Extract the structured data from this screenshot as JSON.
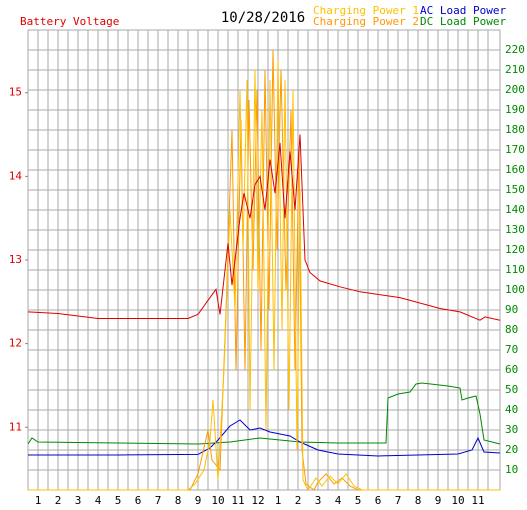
{
  "chart_data": {
    "type": "line",
    "title": "10/28/2016",
    "xlim": [
      0.5,
      24.1
    ],
    "xticks": [
      1,
      2,
      3,
      4,
      5,
      6,
      7,
      8,
      9,
      10,
      11,
      12,
      {
        "value": 13,
        "label": "1"
      },
      {
        "value": 14,
        "label": "2"
      },
      {
        "value": 15,
        "label": "3"
      },
      {
        "value": 16,
        "label": "4"
      },
      {
        "value": 17,
        "label": "5"
      },
      {
        "value": 18,
        "label": "6"
      },
      {
        "value": 19,
        "label": "7"
      },
      {
        "value": 20,
        "label": "8"
      },
      {
        "value": 21,
        "label": "9"
      },
      {
        "value": 22,
        "label": "10"
      },
      {
        "value": 23,
        "label": "11"
      }
    ],
    "ylim": [
      10.25,
      15.75
    ],
    "yticks": [
      11,
      12,
      13,
      14,
      15
    ],
    "y2lim": [
      0,
      230
    ],
    "y2ticks": [
      10,
      20,
      30,
      40,
      50,
      60,
      70,
      80,
      90,
      100,
      110,
      120,
      130,
      140,
      150,
      160,
      170,
      180,
      190,
      200,
      210,
      220
    ],
    "grid": true,
    "series": [
      {
        "name": "Battery Voltage",
        "color": "#dd0000",
        "axis": "y",
        "x": [
          0.5,
          2,
          4,
          6,
          8.5,
          9,
          9.6,
          9.9,
          10.1,
          10.5,
          10.7,
          11.1,
          11.3,
          11.6,
          11.85,
          12.1,
          12.35,
          12.6,
          12.85,
          13.1,
          13.35,
          13.6,
          13.85,
          14.1,
          14.35,
          14.6,
          15.1,
          16.1,
          17.1,
          19.1,
          21.1,
          22.1,
          23.1,
          23.35,
          24.1
        ],
        "values": [
          12.38,
          12.36,
          12.3,
          12.3,
          12.3,
          12.35,
          12.55,
          12.65,
          12.35,
          13.2,
          12.7,
          13.5,
          13.8,
          13.5,
          13.9,
          14.0,
          13.6,
          14.2,
          13.8,
          14.4,
          13.5,
          14.3,
          13.6,
          14.5,
          13.0,
          12.85,
          12.75,
          12.68,
          12.62,
          12.55,
          12.42,
          12.38,
          12.28,
          12.32,
          12.28
        ]
      },
      {
        "name": "Charging Power 1",
        "color": "#ffc000",
        "axis": "y2",
        "x": [
          0.5,
          8.5,
          8.85,
          9.3,
          9.6,
          9.75,
          10.0,
          10.3,
          10.6,
          10.85,
          11.1,
          11.25,
          11.45,
          11.6,
          11.85,
          12.0,
          12.2,
          12.4,
          12.6,
          12.8,
          13.0,
          13.2,
          13.35,
          13.55,
          13.75,
          13.95,
          14.1,
          14.25,
          14.5,
          14.9,
          15.2,
          15.6,
          16.0,
          16.4,
          16.8,
          17.2,
          24.1
        ],
        "values": [
          0,
          0,
          3,
          10,
          25,
          45,
          5,
          60,
          140,
          90,
          200,
          120,
          205,
          40,
          210,
          100,
          190,
          30,
          205,
          60,
          215,
          80,
          205,
          40,
          200,
          20,
          150,
          5,
          0,
          6,
          2,
          7,
          3,
          8,
          2,
          0,
          0
        ]
      },
      {
        "name": "Charging Power 2",
        "color": "#ff9900",
        "axis": "y2",
        "x": [
          0.5,
          8.6,
          9.0,
          9.5,
          9.7,
          10.1,
          10.4,
          10.7,
          10.9,
          11.15,
          11.35,
          11.55,
          11.75,
          11.95,
          12.15,
          12.35,
          12.55,
          12.75,
          12.95,
          13.15,
          13.4,
          13.65,
          13.85,
          14.05,
          14.2,
          14.4,
          14.8,
          15.0,
          15.4,
          15.8,
          16.2,
          16.6,
          17.0,
          24.1
        ],
        "values": [
          0,
          0,
          8,
          30,
          15,
          10,
          90,
          180,
          60,
          185,
          60,
          195,
          110,
          200,
          70,
          210,
          90,
          220,
          120,
          210,
          100,
          190,
          60,
          170,
          20,
          3,
          0,
          4,
          8,
          3,
          6,
          2,
          0,
          0
        ]
      },
      {
        "name": "AC Load Power",
        "color": "#0000cc",
        "axis": "y2",
        "x": [
          0.5,
          5,
          9,
          9.6,
          10,
          10.6,
          11.1,
          11.6,
          12.1,
          12.6,
          13.1,
          13.6,
          14.1,
          15,
          16,
          18,
          20,
          22,
          22.7,
          23.0,
          23.3,
          24.1
        ],
        "values": [
          17.5,
          17.5,
          17.8,
          21,
          25,
          32,
          35,
          30,
          31,
          29,
          28,
          27,
          24,
          20,
          18,
          17,
          17.5,
          18,
          20,
          26,
          19,
          18.5
        ]
      },
      {
        "name": "DC Load Power",
        "color": "#008800",
        "axis": "y2",
        "x": [
          0.5,
          0.7,
          1,
          5,
          9,
          10.6,
          12.1,
          14.1,
          16,
          18.4,
          18.5,
          19,
          19.6,
          19.9,
          20.2,
          21.5,
          22.1,
          22.2,
          22.5,
          22.9,
          23.1,
          23.3,
          24.1
        ],
        "values": [
          23,
          26,
          24,
          23.5,
          23,
          24,
          26,
          24,
          23.5,
          23.5,
          46,
          48,
          49,
          53,
          53.5,
          52,
          51,
          45,
          46,
          47,
          38,
          25,
          23
        ]
      }
    ]
  }
}
